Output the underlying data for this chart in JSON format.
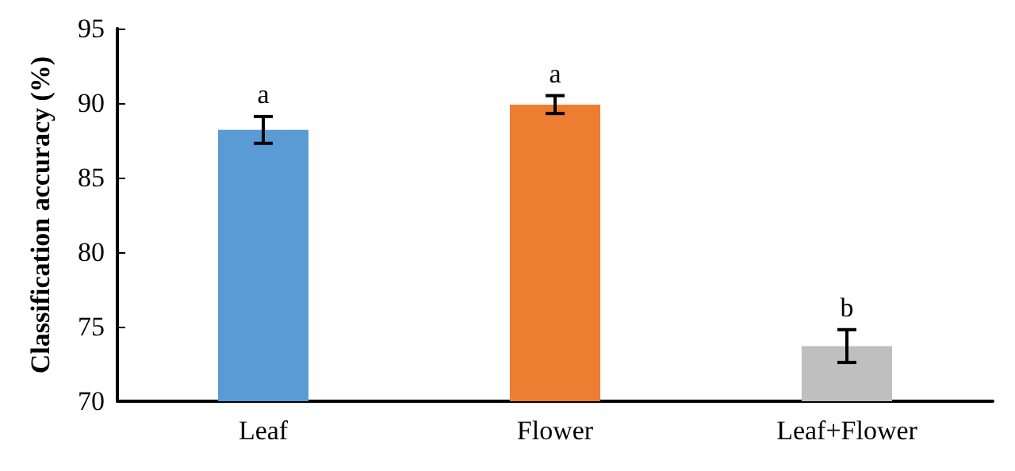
{
  "chart_data": {
    "type": "bar",
    "ylabel": "Classification accuracy (%)",
    "categories": [
      "Leaf",
      "Flower",
      "Leaf+Flower"
    ],
    "values": [
      88.2,
      89.9,
      73.7
    ],
    "colors": [
      "#5b9bd5",
      "#ed7d31",
      "#bfbfbf"
    ],
    "errors": [
      0.9,
      0.6,
      1.1
    ],
    "ylim": [
      70,
      95
    ],
    "yticks": [
      70,
      75,
      80,
      85,
      90,
      95
    ],
    "grid": false,
    "annotations": [
      "a",
      "a",
      "b"
    ]
  }
}
